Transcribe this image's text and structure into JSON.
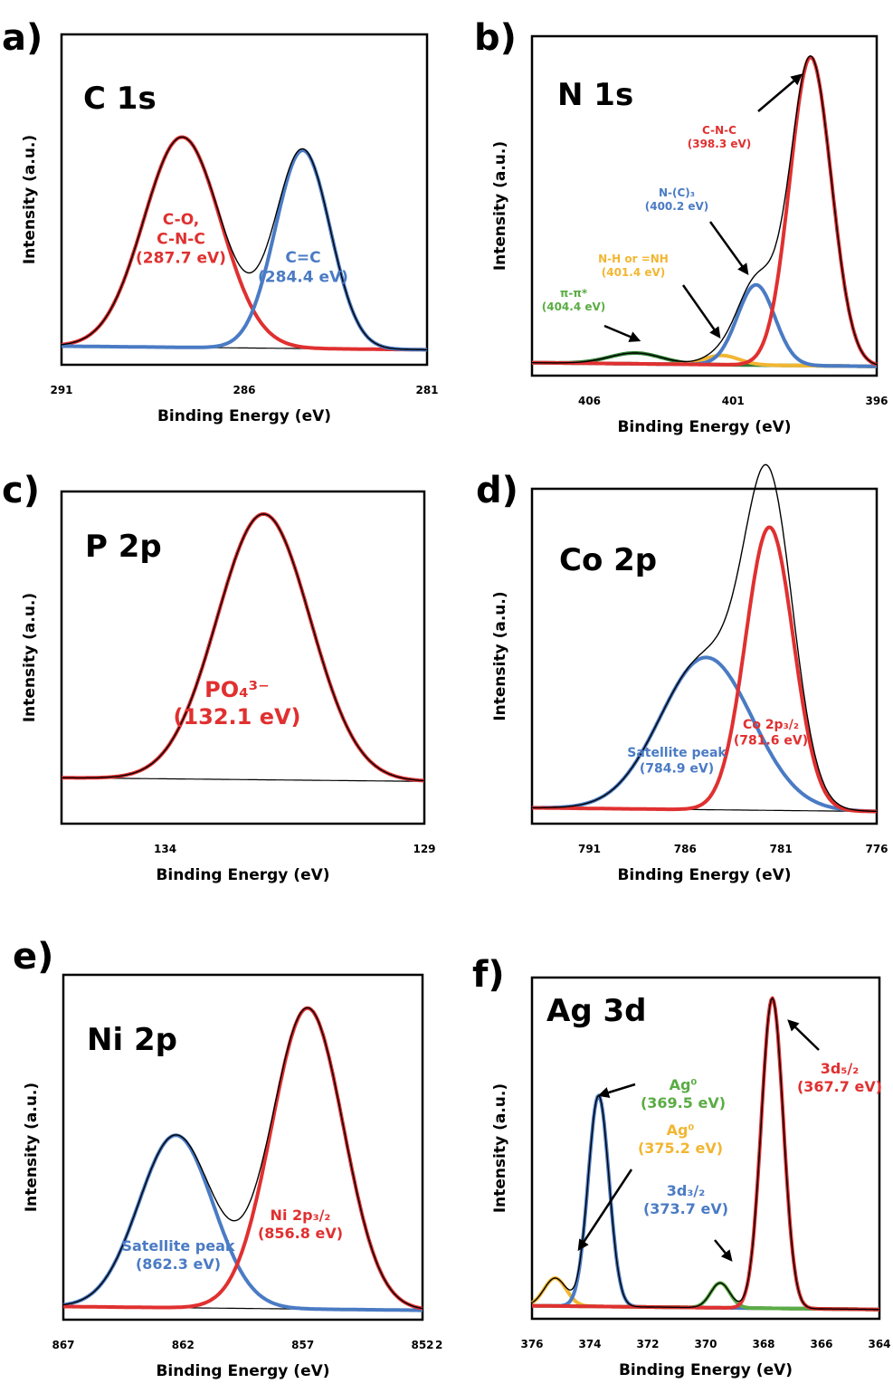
{
  "chart_data": [
    {
      "type": "line",
      "panel": "a)",
      "title": "C 1s",
      "xlabel": "Binding Energy (eV)",
      "ylabel": "Intensity (a.u.)",
      "xlim": [
        291,
        281
      ],
      "ylim": [
        0,
        1.1
      ],
      "xticks": [
        291,
        286,
        281
      ],
      "grid": false,
      "background": 0.05,
      "components": [
        {
          "label": [
            "C-O,",
            "C-N-C",
            "(287.7 eV)"
          ],
          "center": 287.7,
          "height": 0.7,
          "width": 1.05,
          "color": "#e03030",
          "label_color": "#e03030"
        },
        {
          "label": [
            "C=C",
            "(284.4 eV)"
          ],
          "center": 284.4,
          "height": 0.66,
          "width": 0.75,
          "color": "#4a7bc4",
          "label_color": "#4a7bc4"
        }
      ],
      "annotations": []
    },
    {
      "type": "line",
      "panel": "b)",
      "title": "N 1s",
      "xlabel": "Binding Energy (eV)",
      "ylabel": "Intensity (a.u.)",
      "xlim": [
        408,
        396
      ],
      "ylim": [
        0,
        1.1
      ],
      "xticks": [
        406,
        401,
        396
      ],
      "grid": false,
      "background": 0.03,
      "components": [
        {
          "label": [
            "π-π*",
            "(404.4 eV)"
          ],
          "center": 404.4,
          "height": 0.035,
          "width": 0.9,
          "color": "#2e7d32",
          "label_color": "#5aac44"
        },
        {
          "label": [
            "N-H or =NH",
            "(401.4 eV)"
          ],
          "center": 401.4,
          "height": 0.03,
          "width": 0.6,
          "color": "#f2b632",
          "label_color": "#f2b632"
        },
        {
          "label": [
            "N-(C)₃",
            "(400.2 eV)"
          ],
          "center": 400.2,
          "height": 0.26,
          "width": 0.65,
          "color": "#4a7bc4",
          "label_color": "#4a7bc4"
        },
        {
          "label": [
            "C-N-C",
            "(398.3 eV)"
          ],
          "center": 398.3,
          "height": 1.0,
          "width": 0.72,
          "color": "#e03030",
          "label_color": "#e03030"
        }
      ],
      "annotations": []
    },
    {
      "type": "line",
      "panel": "c)",
      "title": "P 2p",
      "xlabel": "Binding Energy (eV)",
      "ylabel": "Intensity (a.u.)",
      "xlim": [
        136,
        129
      ],
      "ylim": [
        0,
        1.1
      ],
      "xticks": [
        134,
        129
      ],
      "grid": false,
      "background": 0.14,
      "components": [
        {
          "label": [
            "PO₄³⁻",
            "(132.1 eV)"
          ],
          "center": 132.1,
          "height": 0.88,
          "width": 0.9,
          "color": "#e03030",
          "label_color": "#e03030"
        }
      ],
      "annotations": []
    },
    {
      "type": "line",
      "panel": "d)",
      "title": "Co 2p",
      "xlabel": "Binding Energy (eV)",
      "ylabel": "Intensity (a.u.)",
      "xlim": [
        794,
        776
      ],
      "ylim": [
        0,
        1.1
      ],
      "xticks": [
        791,
        786,
        781,
        776
      ],
      "grid": false,
      "background": 0.04,
      "components": [
        {
          "label": [
            "Satellite peak",
            "(784.9 eV)"
          ],
          "center": 784.9,
          "height": 0.5,
          "width": 2.4,
          "color": "#4a7bc4",
          "label_color": "#4a7bc4"
        },
        {
          "label": [
            "Co 2p₃/₂",
            "(781.6 eV)"
          ],
          "center": 781.6,
          "height": 0.93,
          "width": 1.25,
          "color": "#e03030",
          "label_color": "#e03030"
        }
      ],
      "annotations": []
    },
    {
      "type": "line",
      "panel": "e)",
      "title": "Ni 2p",
      "xlabel": "Binding Energy (eV)",
      "ylabel": "Intensity (a.u.)",
      "xlim": [
        867,
        852
      ],
      "ylim": [
        0,
        1.1
      ],
      "xticks": [
        867,
        862,
        857,
        852
      ],
      "grid": false,
      "background": 0.03,
      "components": [
        {
          "label": [
            "Satellite peak",
            "(862.3 eV)"
          ],
          "center": 862.3,
          "height": 0.55,
          "width": 1.55,
          "color": "#4a7bc4",
          "label_color": "#4a7bc4"
        },
        {
          "label": [
            "Ni 2p₃/₂",
            "(856.8 eV)"
          ],
          "center": 856.8,
          "height": 0.96,
          "width": 1.5,
          "color": "#e03030",
          "label_color": "#e03030"
        }
      ],
      "annotations": [
        "2"
      ]
    },
    {
      "type": "line",
      "panel": "f)",
      "title": "Ag 3d",
      "xlabel": "Binding Energy (eV)",
      "ylabel": "Intensity (a.u.)",
      "xlim": [
        376,
        364
      ],
      "ylim": [
        0,
        1.1
      ],
      "xticks": [
        376,
        374,
        372,
        370,
        368,
        366,
        364
      ],
      "grid": false,
      "background": 0.03,
      "components": [
        {
          "label": [
            "Ag⁰",
            "(375.2 eV)"
          ],
          "center": 375.2,
          "height": 0.09,
          "width": 0.38,
          "color": "#f2b632",
          "label_color": "#f2b632"
        },
        {
          "label": [
            "3d₃/₂",
            "(373.7 eV)"
          ],
          "center": 373.7,
          "height": 0.68,
          "width": 0.36,
          "color": "#4a7bc4",
          "label_color": "#4a7bc4"
        },
        {
          "label": [
            "Ag⁰",
            "(369.5 eV)"
          ],
          "center": 369.5,
          "height": 0.08,
          "width": 0.33,
          "color": "#5aac44",
          "label_color": "#5aac44"
        },
        {
          "label": [
            "3d₅/₂",
            "(367.7 eV)"
          ],
          "center": 367.7,
          "height": 1.0,
          "width": 0.38,
          "color": "#e03030",
          "label_color": "#e03030"
        }
      ],
      "annotations": []
    }
  ]
}
